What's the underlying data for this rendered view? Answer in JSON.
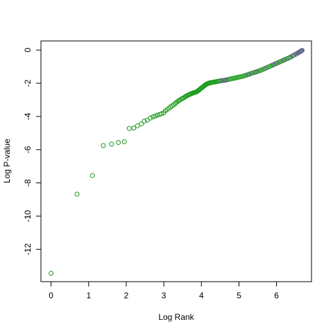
{
  "chart_data": {
    "type": "scatter",
    "title": "",
    "xlabel": "Log Rank",
    "ylabel": "Log P-value",
    "xlim": [
      -0.27,
      6.93
    ],
    "ylim": [
      -13.95,
      0.55
    ],
    "x_ticks": [
      0,
      1,
      2,
      3,
      4,
      5,
      6
    ],
    "y_ticks": [
      0,
      -2,
      -4,
      -6,
      -8,
      -10,
      -12
    ],
    "grid": false,
    "legend": "none",
    "marker": "open-circle",
    "colors": {
      "primary": "#1a9a1a",
      "secondary": "#7c56b0",
      "axis": "#000000"
    },
    "series": [
      {
        "color": "#1a9a1a",
        "points": [
          [
            0.0,
            -13.45
          ],
          [
            0.69,
            -8.68
          ],
          [
            1.1,
            -7.56
          ],
          [
            1.39,
            -5.75
          ],
          [
            1.61,
            -5.66
          ],
          [
            1.79,
            -5.57
          ],
          [
            1.95,
            -5.52
          ],
          [
            2.08,
            -4.72
          ],
          [
            2.2,
            -4.7
          ],
          [
            2.3,
            -4.56
          ],
          [
            2.4,
            -4.45
          ],
          [
            2.48,
            -4.28
          ],
          [
            2.56,
            -4.22
          ],
          [
            2.64,
            -4.1
          ],
          [
            2.71,
            -4.02
          ],
          [
            2.77,
            -3.98
          ],
          [
            2.83,
            -3.92
          ],
          [
            2.89,
            -3.88
          ],
          [
            2.94,
            -3.83
          ],
          [
            3.0,
            -3.78
          ],
          [
            3.04,
            -3.66
          ],
          [
            3.09,
            -3.58
          ],
          [
            3.14,
            -3.5
          ],
          [
            3.18,
            -3.42
          ],
          [
            3.22,
            -3.36
          ],
          [
            3.26,
            -3.3
          ],
          [
            3.3,
            -3.23
          ],
          [
            3.33,
            -3.16
          ],
          [
            3.37,
            -3.1
          ],
          [
            3.4,
            -3.04
          ],
          [
            3.43,
            -3.0
          ],
          [
            3.47,
            -2.95
          ],
          [
            3.5,
            -2.91
          ],
          [
            3.53,
            -2.87
          ],
          [
            3.56,
            -2.83
          ],
          [
            3.58,
            -2.79
          ],
          [
            3.61,
            -2.75
          ],
          [
            3.64,
            -2.72
          ],
          [
            3.66,
            -2.7
          ],
          [
            3.69,
            -2.67
          ],
          [
            3.71,
            -2.64
          ],
          [
            3.74,
            -2.62
          ],
          [
            3.76,
            -2.6
          ],
          [
            3.78,
            -2.58
          ],
          [
            3.81,
            -2.56
          ],
          [
            3.83,
            -2.55
          ],
          [
            3.85,
            -2.53
          ],
          [
            3.87,
            -2.51
          ],
          [
            3.89,
            -2.49
          ],
          [
            3.91,
            -2.45
          ],
          [
            3.93,
            -2.42
          ],
          [
            3.95,
            -2.38
          ],
          [
            3.97,
            -2.34
          ],
          [
            3.99,
            -2.3
          ],
          [
            4.01,
            -2.27
          ],
          [
            4.03,
            -2.24
          ],
          [
            4.05,
            -2.2
          ],
          [
            4.07,
            -2.16
          ],
          [
            4.09,
            -2.12
          ],
          [
            4.11,
            -2.09
          ],
          [
            4.13,
            -2.06
          ],
          [
            4.15,
            -2.04
          ],
          [
            4.17,
            -2.02
          ],
          [
            4.19,
            -2.0
          ],
          [
            4.21,
            -1.99
          ],
          [
            4.23,
            -1.97
          ],
          [
            4.26,
            -1.96
          ],
          [
            4.29,
            -1.95
          ],
          [
            4.32,
            -1.93
          ],
          [
            4.35,
            -1.92
          ],
          [
            4.38,
            -1.91
          ],
          [
            4.41,
            -1.9
          ],
          [
            4.44,
            -1.88
          ],
          [
            4.47,
            -1.87
          ],
          [
            4.5,
            -1.86
          ],
          [
            4.54,
            -1.85
          ],
          [
            4.58,
            -1.83
          ],
          [
            4.62,
            -1.82
          ],
          [
            4.66,
            -1.8
          ],
          [
            4.7,
            -1.78
          ],
          [
            4.74,
            -1.76
          ],
          [
            4.78,
            -1.74
          ],
          [
            4.82,
            -1.72
          ],
          [
            4.86,
            -1.7
          ],
          [
            4.9,
            -1.68
          ],
          [
            4.94,
            -1.66
          ],
          [
            4.98,
            -1.64
          ],
          [
            5.02,
            -1.62
          ],
          [
            5.06,
            -1.6
          ],
          [
            5.1,
            -1.58
          ],
          [
            5.14,
            -1.55
          ],
          [
            5.18,
            -1.52
          ],
          [
            5.22,
            -1.49
          ],
          [
            5.26,
            -1.46
          ],
          [
            5.3,
            -1.43
          ],
          [
            5.34,
            -1.4
          ],
          [
            5.38,
            -1.37
          ],
          [
            5.42,
            -1.34
          ],
          [
            5.46,
            -1.31
          ],
          [
            5.5,
            -1.28
          ],
          [
            5.54,
            -1.25
          ],
          [
            5.58,
            -1.22
          ],
          [
            5.62,
            -1.18
          ],
          [
            5.66,
            -1.14
          ],
          [
            5.7,
            -1.1
          ],
          [
            5.74,
            -1.06
          ],
          [
            5.78,
            -1.02
          ],
          [
            5.82,
            -0.98
          ],
          [
            5.86,
            -0.94
          ],
          [
            5.9,
            -0.9
          ],
          [
            5.94,
            -0.86
          ],
          [
            5.98,
            -0.82
          ],
          [
            6.02,
            -0.78
          ],
          [
            6.06,
            -0.74
          ],
          [
            6.1,
            -0.7
          ],
          [
            6.14,
            -0.66
          ],
          [
            6.18,
            -0.62
          ],
          [
            6.22,
            -0.58
          ],
          [
            6.26,
            -0.54
          ],
          [
            6.3,
            -0.5
          ],
          [
            6.34,
            -0.46
          ],
          [
            6.38,
            -0.41
          ],
          [
            6.42,
            -0.36
          ],
          [
            6.46,
            -0.31
          ],
          [
            6.5,
            -0.26
          ],
          [
            6.54,
            -0.21
          ],
          [
            6.58,
            -0.16
          ],
          [
            6.61,
            -0.12
          ],
          [
            6.64,
            -0.08
          ],
          [
            6.66,
            -0.05
          ],
          [
            6.68,
            -0.02
          ]
        ]
      },
      {
        "color": "#7c56b0",
        "points": [
          [
            4.55,
            -1.84
          ],
          [
            4.6,
            -1.83
          ],
          [
            4.64,
            -1.81
          ],
          [
            5.25,
            -1.47
          ],
          [
            5.45,
            -1.32
          ],
          [
            5.7,
            -1.1
          ],
          [
            5.92,
            -0.88
          ],
          [
            6.0,
            -0.8
          ],
          [
            6.2,
            -0.6
          ],
          [
            6.35,
            -0.45
          ],
          [
            6.45,
            -0.32
          ],
          [
            6.52,
            -0.24
          ],
          [
            6.57,
            -0.17
          ],
          [
            6.62,
            -0.1
          ],
          [
            6.65,
            -0.06
          ],
          [
            6.67,
            -0.03
          ]
        ]
      }
    ]
  }
}
